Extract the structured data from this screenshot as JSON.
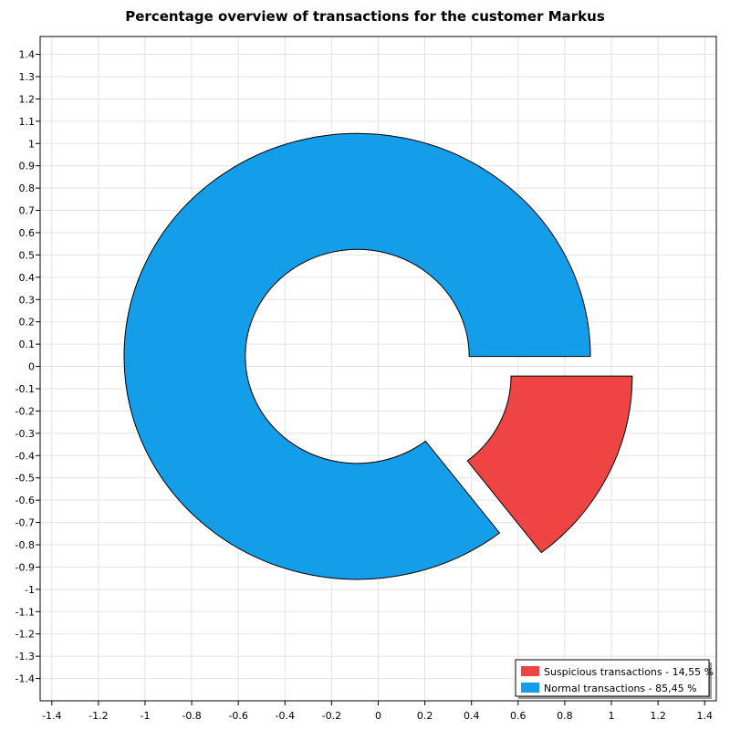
{
  "chart_data": {
    "type": "pie",
    "title": "Percentage overview of transactions for the customer Markus",
    "style": "donut-exploded",
    "xlim": [
      -1.45,
      1.45
    ],
    "ylim": [
      -1.5,
      1.48
    ],
    "x_ticks": [
      "-1.4",
      "-1.2",
      "-1",
      "-0.8",
      "-0.6",
      "-0.4",
      "-0.2",
      "0",
      "0.2",
      "0.4",
      "0.6",
      "0.8",
      "1",
      "1.2",
      "1.4"
    ],
    "y_ticks": [
      "-1.4",
      "-1.3",
      "-1.2",
      "-1.1",
      "-1",
      "-0.9",
      "-0.8",
      "-0.7",
      "-0.6",
      "-0.5",
      "-0.4",
      "-0.3",
      "-0.2",
      "-0.1",
      "0",
      "0.1",
      "0.2",
      "0.3",
      "0.4",
      "0.5",
      "0.6",
      "0.7",
      "0.8",
      "0.9",
      "1",
      "1.1",
      "1.2",
      "1.3",
      "1.4"
    ],
    "grid": true,
    "legend_position": "bottom-right",
    "slices": [
      {
        "label": "Suspicious transactions - 14,55 %",
        "value": 14.55,
        "color": "#ef4444",
        "exploded": true
      },
      {
        "label": "Normal transactions - 85,45 %",
        "value": 85.45,
        "color": "#149de8",
        "exploded": false
      }
    ]
  }
}
